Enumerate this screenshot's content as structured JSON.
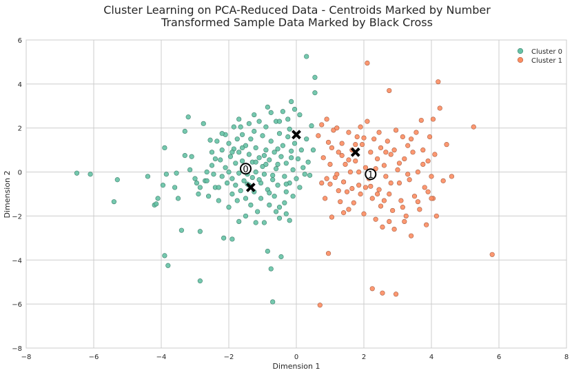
{
  "chart_data": {
    "type": "scatter",
    "title_line1": "Cluster Learning on PCA-Reduced Data - Centroids Marked by Number",
    "title_line2": "Transformed Sample Data Marked by Black Cross",
    "xlabel": "Dimension 1",
    "ylabel": "Dimension 2",
    "xlim": [
      -8,
      8
    ],
    "ylim": [
      -8,
      6
    ],
    "xticks": [
      -8,
      -6,
      -4,
      -2,
      0,
      2,
      4,
      6,
      8
    ],
    "yticks": [
      -8,
      -6,
      -4,
      -2,
      0,
      2,
      4,
      6
    ],
    "grid": true,
    "legend_position": "top-right",
    "series": [
      {
        "name": "Cluster 0",
        "color": "#66c2a5",
        "points": [
          [
            -6.5,
            -0.05
          ],
          [
            -6.1,
            -0.1
          ],
          [
            -5.3,
            -0.35
          ],
          [
            -5.4,
            -1.35
          ],
          [
            -4.4,
            -0.2
          ],
          [
            -4.2,
            -1.5
          ],
          [
            -4.1,
            -1.2
          ],
          [
            -3.9,
            -3.8
          ],
          [
            -3.8,
            -4.25
          ],
          [
            -3.9,
            1.1
          ],
          [
            -3.85,
            -0.1
          ],
          [
            -3.6,
            -0.7
          ],
          [
            -3.5,
            -1.2
          ],
          [
            -3.4,
            -2.65
          ],
          [
            -3.3,
            1.85
          ],
          [
            -3.2,
            2.5
          ],
          [
            -3.3,
            0.75
          ],
          [
            -3.15,
            0.1
          ],
          [
            -3.1,
            0.7
          ],
          [
            -3.0,
            -0.3
          ],
          [
            -2.95,
            -0.5
          ],
          [
            -2.85,
            -0.7
          ],
          [
            -2.9,
            -1.0
          ],
          [
            -2.85,
            -2.7
          ],
          [
            -2.85,
            -4.95
          ],
          [
            -2.75,
            2.2
          ],
          [
            -2.7,
            -0.4
          ],
          [
            -2.65,
            0.0
          ],
          [
            -2.6,
            -1.1
          ],
          [
            -2.55,
            1.45
          ],
          [
            -2.5,
            0.9
          ],
          [
            -2.5,
            0.3
          ],
          [
            -2.45,
            -0.1
          ],
          [
            -2.4,
            -0.7
          ],
          [
            -2.35,
            1.4
          ],
          [
            -2.3,
            -1.3
          ],
          [
            -2.25,
            0.55
          ],
          [
            -2.2,
            1.0
          ],
          [
            -2.2,
            -0.2
          ],
          [
            -2.15,
            -3.0
          ],
          [
            -2.1,
            1.7
          ],
          [
            -2.1,
            0.2
          ],
          [
            -2.05,
            -0.5
          ],
          [
            -2.0,
            1.3
          ],
          [
            -2.0,
            -1.6
          ],
          [
            -1.95,
            0.7
          ],
          [
            -1.9,
            -0.3
          ],
          [
            -1.9,
            -1.0
          ],
          [
            -1.85,
            2.05
          ],
          [
            -1.85,
            1.05
          ],
          [
            -1.8,
            0.4
          ],
          [
            -1.8,
            -0.6
          ],
          [
            -1.75,
            1.5
          ],
          [
            -1.75,
            -1.3
          ],
          [
            -1.7,
            0.9
          ],
          [
            -1.7,
            -0.05
          ],
          [
            -1.65,
            2.05
          ],
          [
            -1.65,
            -0.85
          ],
          [
            -1.6,
            1.7
          ],
          [
            -1.6,
            0.5
          ],
          [
            -1.55,
            -0.4
          ],
          [
            -1.5,
            1.2
          ],
          [
            -1.5,
            -1.2
          ],
          [
            -1.5,
            -2.0
          ],
          [
            -1.45,
            0.2
          ],
          [
            -1.4,
            2.2
          ],
          [
            -1.4,
            0.8
          ],
          [
            -1.4,
            -0.6
          ],
          [
            -1.35,
            1.5
          ],
          [
            -1.35,
            -1.5
          ],
          [
            -1.3,
            0.45
          ],
          [
            -1.3,
            -0.25
          ],
          [
            -1.25,
            1.85
          ],
          [
            -1.25,
            -0.9
          ],
          [
            -1.2,
            1.1
          ],
          [
            -1.2,
            0.0
          ],
          [
            -1.15,
            -1.8
          ],
          [
            -1.1,
            2.3
          ],
          [
            -1.1,
            0.65
          ],
          [
            -1.05,
            -0.5
          ],
          [
            -1.05,
            -1.2
          ],
          [
            -1.0,
            1.65
          ],
          [
            -1.0,
            0.25
          ],
          [
            -0.95,
            -0.1
          ],
          [
            -0.95,
            -2.3
          ],
          [
            -0.9,
            2.05
          ],
          [
            -0.9,
            1.0
          ],
          [
            -0.85,
            -0.8
          ],
          [
            -0.85,
            -3.6
          ],
          [
            -0.8,
            0.55
          ],
          [
            -0.8,
            -1.5
          ],
          [
            -0.75,
            2.7
          ],
          [
            -0.75,
            1.4
          ],
          [
            -0.7,
            -0.35
          ],
          [
            -0.7,
            -5.9
          ],
          [
            -0.65,
            0.9
          ],
          [
            -0.65,
            -1.1
          ],
          [
            -0.6,
            2.3
          ],
          [
            -0.6,
            0.15
          ],
          [
            -0.55,
            -0.6
          ],
          [
            -0.5,
            1.75
          ],
          [
            -0.5,
            -1.6
          ],
          [
            -0.5,
            -2.1
          ],
          [
            -0.45,
            0.7
          ],
          [
            -0.45,
            -3.85
          ],
          [
            -0.4,
            2.75
          ],
          [
            -0.4,
            1.2
          ],
          [
            -0.35,
            -0.2
          ],
          [
            -0.35,
            -1.4
          ],
          [
            -0.3,
            0.4
          ],
          [
            -0.3,
            -0.9
          ],
          [
            -0.25,
            2.4
          ],
          [
            -0.25,
            1.6
          ],
          [
            -0.2,
            -0.5
          ],
          [
            -0.2,
            -2.2
          ],
          [
            -0.15,
            0.95
          ],
          [
            -0.15,
            3.2
          ],
          [
            -0.1,
            0.1
          ],
          [
            -0.1,
            -1.1
          ],
          [
            -0.05,
            2.85
          ],
          [
            -0.05,
            1.3
          ],
          [
            0.0,
            -0.3
          ],
          [
            0.05,
            0.6
          ],
          [
            0.1,
            -0.7
          ],
          [
            0.1,
            2.6
          ],
          [
            0.15,
            1.0
          ],
          [
            0.2,
            0.2
          ],
          [
            0.25,
            -0.1
          ],
          [
            0.3,
            1.5
          ],
          [
            0.35,
            0.45
          ],
          [
            0.4,
            -0.15
          ],
          [
            0.3,
            5.25
          ],
          [
            0.55,
            4.3
          ],
          [
            0.55,
            3.6
          ],
          [
            0.5,
            1.0
          ],
          [
            0.45,
            2.1
          ],
          [
            -1.9,
            -3.05
          ],
          [
            -0.75,
            -4.4
          ],
          [
            -2.65,
            -0.4
          ],
          [
            -1.55,
            0.05
          ],
          [
            -1.45,
            -0.55
          ],
          [
            -1.2,
            0.45
          ],
          [
            -0.95,
            0.75
          ],
          [
            -0.7,
            -0.15
          ],
          [
            -0.55,
            0.35
          ],
          [
            -0.3,
            -0.55
          ],
          [
            -2.0,
            0.0
          ],
          [
            -2.3,
            -0.7
          ],
          [
            -1.7,
            -2.25
          ],
          [
            -1.2,
            -2.3
          ],
          [
            -0.6,
            -1.8
          ],
          [
            -0.3,
            -1.9
          ],
          [
            -1.9,
            0.9
          ],
          [
            -2.2,
            1.75
          ],
          [
            -2.4,
            0.6
          ],
          [
            -3.55,
            -0.05
          ],
          [
            -3.95,
            -0.6
          ],
          [
            -4.15,
            -1.45
          ],
          [
            -1.7,
            2.4
          ],
          [
            -1.25,
            2.6
          ],
          [
            -0.85,
            2.95
          ],
          [
            -0.5,
            2.3
          ],
          [
            -0.2,
            1.95
          ],
          [
            -0.9,
            0.35
          ],
          [
            -1.1,
            -0.35
          ],
          [
            -1.45,
            -0.1
          ],
          [
            -0.8,
            -0.95
          ],
          [
            -0.55,
            1.05
          ],
          [
            -0.15,
            0.65
          ],
          [
            -1.6,
            1.1
          ]
        ]
      },
      {
        "name": "Cluster 1",
        "color": "#fc8d62",
        "points": [
          [
            0.65,
            1.65
          ],
          [
            0.75,
            2.15
          ],
          [
            0.8,
            0.65
          ],
          [
            0.85,
            -1.2
          ],
          [
            0.9,
            2.4
          ],
          [
            0.95,
            1.35
          ],
          [
            1.0,
            0.35
          ],
          [
            1.0,
            -0.55
          ],
          [
            1.05,
            -2.05
          ],
          [
            1.1,
            1.9
          ],
          [
            1.15,
            -0.25
          ],
          [
            1.2,
            2.0
          ],
          [
            1.25,
            0.9
          ],
          [
            1.3,
            -1.35
          ],
          [
            1.35,
            1.3
          ],
          [
            1.4,
            -0.45
          ],
          [
            1.45,
            0.35
          ],
          [
            1.5,
            -0.9
          ],
          [
            1.55,
            1.8
          ],
          [
            1.55,
            -1.7
          ],
          [
            1.6,
            0.0
          ],
          [
            1.65,
            1.0
          ],
          [
            1.7,
            -1.4
          ],
          [
            1.75,
            0.5
          ],
          [
            1.8,
            1.6
          ],
          [
            1.85,
            -0.6
          ],
          [
            1.9,
            -1.0
          ],
          [
            1.95,
            1.25
          ],
          [
            2.0,
            -1.9
          ],
          [
            2.05,
            0.2
          ],
          [
            2.1,
            2.3
          ],
          [
            2.1,
            4.95
          ],
          [
            2.15,
            -0.3
          ],
          [
            2.2,
            0.9
          ],
          [
            2.25,
            -1.2
          ],
          [
            2.3,
            1.5
          ],
          [
            2.35,
            -2.15
          ],
          [
            2.4,
            0.6
          ],
          [
            2.45,
            -0.8
          ],
          [
            2.5,
            1.1
          ],
          [
            2.5,
            -1.55
          ],
          [
            2.55,
            -2.5
          ],
          [
            2.6,
            0.3
          ],
          [
            2.65,
            -0.2
          ],
          [
            2.7,
            1.4
          ],
          [
            2.75,
            -1.0
          ],
          [
            2.75,
            3.7
          ],
          [
            2.8,
            0.8
          ],
          [
            2.85,
            -1.75
          ],
          [
            2.9,
            -2.6
          ],
          [
            2.95,
            1.9
          ],
          [
            3.0,
            0.1
          ],
          [
            3.05,
            -0.5
          ],
          [
            3.1,
            -1.3
          ],
          [
            3.15,
            1.6
          ],
          [
            3.2,
            0.6
          ],
          [
            3.25,
            -2.0
          ],
          [
            3.3,
            1.2
          ],
          [
            3.35,
            -0.35
          ],
          [
            3.4,
            -2.9
          ],
          [
            3.45,
            0.9
          ],
          [
            3.5,
            -1.1
          ],
          [
            3.55,
            1.8
          ],
          [
            3.6,
            0.0
          ],
          [
            3.65,
            -1.7
          ],
          [
            3.7,
            2.35
          ],
          [
            3.75,
            1.0
          ],
          [
            3.8,
            -0.7
          ],
          [
            3.85,
            -2.4
          ],
          [
            3.9,
            0.5
          ],
          [
            3.95,
            1.6
          ],
          [
            4.0,
            -0.2
          ],
          [
            4.05,
            -1.2
          ],
          [
            4.1,
            0.8
          ],
          [
            4.15,
            -2.0
          ],
          [
            4.2,
            4.1
          ],
          [
            4.25,
            2.9
          ],
          [
            4.35,
            -0.4
          ],
          [
            4.45,
            1.25
          ],
          [
            4.6,
            -0.2
          ],
          [
            4.0,
            -1.2
          ],
          [
            5.25,
            2.05
          ],
          [
            5.8,
            -3.75
          ],
          [
            0.7,
            -6.05
          ],
          [
            0.95,
            -3.7
          ],
          [
            2.25,
            -5.3
          ],
          [
            2.55,
            -5.5
          ],
          [
            2.95,
            -5.55
          ],
          [
            1.65,
            -0.75
          ],
          [
            1.35,
            0.75
          ],
          [
            2.05,
            -0.7
          ],
          [
            2.45,
            1.8
          ],
          [
            2.8,
            -0.5
          ],
          [
            3.05,
            0.4
          ],
          [
            1.2,
            -0.1
          ],
          [
            0.9,
            -0.3
          ],
          [
            1.75,
            1.25
          ],
          [
            2.6,
            -1.3
          ],
          [
            3.4,
            1.5
          ],
          [
            3.15,
            -1.6
          ],
          [
            1.55,
            0.55
          ],
          [
            1.9,
            2.05
          ],
          [
            2.2,
            -0.65
          ],
          [
            2.65,
            0.9
          ],
          [
            3.75,
            0.35
          ],
          [
            4.05,
            2.4
          ],
          [
            3.3,
            -0.1
          ],
          [
            2.35,
            0.15
          ],
          [
            1.4,
            -1.85
          ],
          [
            0.75,
            -0.5
          ],
          [
            1.05,
            1.1
          ],
          [
            2.9,
            1.0
          ],
          [
            3.6,
            -1.35
          ],
          [
            1.85,
            0.0
          ],
          [
            2.0,
            1.55
          ],
          [
            2.75,
            -2.25
          ],
          [
            3.9,
            -0.9
          ],
          [
            1.25,
            -0.85
          ],
          [
            2.4,
            -1.0
          ],
          [
            3.2,
            -2.25
          ]
        ]
      }
    ],
    "centroids": [
      {
        "label": "0",
        "x": -1.5,
        "y": 0.15
      },
      {
        "label": "1",
        "x": 2.2,
        "y": -0.1
      }
    ],
    "samples": [
      {
        "x": 0.0,
        "y": 1.7
      },
      {
        "x": 1.75,
        "y": 0.9
      },
      {
        "x": -1.35,
        "y": -0.7
      }
    ]
  }
}
